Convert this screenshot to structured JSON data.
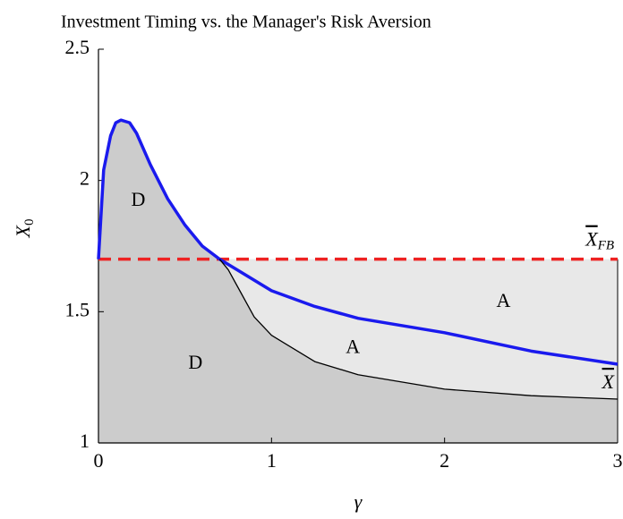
{
  "chart_data": {
    "type": "line",
    "title": "Investment Timing vs. the Manager's Risk Aversion",
    "x_label": "γ",
    "y_label": {
      "text": "X",
      "subscript": "0"
    },
    "xlim": [
      0,
      3
    ],
    "ylim": [
      1,
      2.5
    ],
    "xticks": [
      0,
      1,
      2,
      3
    ],
    "yticks": [
      1,
      1.5,
      2,
      2.5
    ],
    "region_colors": {
      "D": "#cccccc",
      "A": "#e8e8e8"
    },
    "series": [
      {
        "name": "X",
        "subscript": "FB",
        "overline": true,
        "color": "#ee2222",
        "dash": true,
        "width": 3.5,
        "x": [
          0,
          3
        ],
        "values": [
          1.7,
          1.7
        ]
      },
      {
        "name": "X",
        "overline": true,
        "color": "#1a1aee",
        "dash": false,
        "width": 3.5,
        "x": [
          0,
          0.03,
          0.07,
          0.1,
          0.13,
          0.18,
          0.22,
          0.3,
          0.4,
          0.5,
          0.6,
          0.7,
          0.8,
          1,
          1.25,
          1.5,
          2,
          2.5,
          3
        ],
        "values": [
          1.7,
          2.04,
          2.17,
          2.22,
          2.23,
          2.22,
          2.18,
          2.06,
          1.93,
          1.83,
          1.75,
          1.7,
          1.66,
          1.58,
          1.52,
          1.475,
          1.42,
          1.35,
          1.3
        ]
      },
      {
        "color": "#000000",
        "dash": false,
        "width": 1.3,
        "x": [
          0.7,
          0.75,
          0.8,
          0.9,
          1,
          1.25,
          1.5,
          2,
          2.5,
          3
        ],
        "values": [
          1.7,
          1.66,
          1.6,
          1.48,
          1.41,
          1.31,
          1.26,
          1.205,
          1.18,
          1.167
        ]
      }
    ],
    "annotations": [
      {
        "text": "D",
        "x": 0.23,
        "y": 1.92
      },
      {
        "text": "D",
        "x": 0.56,
        "y": 1.3
      },
      {
        "text": "A",
        "x": 1.47,
        "y": 1.36
      },
      {
        "text": "A",
        "x": 2.34,
        "y": 1.535
      }
    ]
  }
}
